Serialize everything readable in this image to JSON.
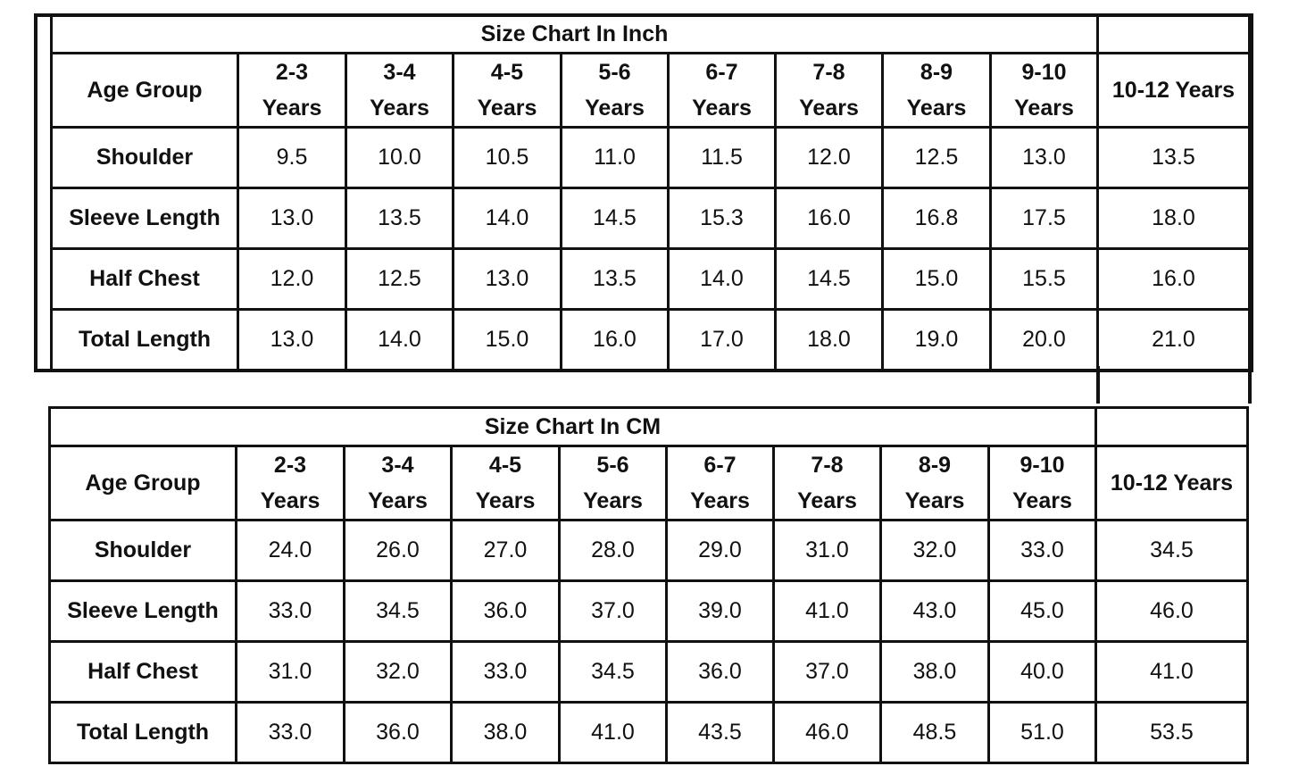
{
  "tables": [
    {
      "title": "Size Chart In Inch",
      "header": [
        "Age Group",
        "2-3 Years",
        "3-4 Years",
        "4-5 Years",
        "5-6 Years",
        "6-7 Years",
        "7-8 Years",
        "8-9 Years",
        "9-10 Years",
        "10-12 Years"
      ],
      "rows": [
        [
          "Shoulder",
          "9.5",
          "10.0",
          "10.5",
          "11.0",
          "11.5",
          "12.0",
          "12.5",
          "13.0",
          "13.5"
        ],
        [
          "Sleeve Length",
          "13.0",
          "13.5",
          "14.0",
          "14.5",
          "15.3",
          "16.0",
          "16.8",
          "17.5",
          "18.0"
        ],
        [
          "Half Chest",
          "12.0",
          "12.5",
          "13.0",
          "13.5",
          "14.0",
          "14.5",
          "15.0",
          "15.5",
          "16.0"
        ],
        [
          "Total Length",
          "13.0",
          "14.0",
          "15.0",
          "16.0",
          "17.0",
          "18.0",
          "19.0",
          "20.0",
          "21.0"
        ]
      ]
    },
    {
      "title": "Size Chart In CM",
      "header": [
        "Age Group",
        "2-3 Years",
        "3-4 Years",
        "4-5 Years",
        "5-6 Years",
        "6-7 Years",
        "7-8 Years",
        "8-9 Years",
        "9-10 Years",
        "10-12 Years"
      ],
      "rows": [
        [
          "Shoulder",
          "24.0",
          "26.0",
          "27.0",
          "28.0",
          "29.0",
          "31.0",
          "32.0",
          "33.0",
          "34.5"
        ],
        [
          "Sleeve Length",
          "33.0",
          "34.5",
          "36.0",
          "37.0",
          "39.0",
          "41.0",
          "43.0",
          "45.0",
          "46.0"
        ],
        [
          "Half Chest",
          "31.0",
          "32.0",
          "33.0",
          "34.5",
          "36.0",
          "37.0",
          "38.0",
          "40.0",
          "41.0"
        ],
        [
          "Total Length",
          "33.0",
          "36.0",
          "38.0",
          "41.0",
          "43.5",
          "46.0",
          "48.5",
          "51.0",
          "53.5"
        ]
      ]
    }
  ]
}
